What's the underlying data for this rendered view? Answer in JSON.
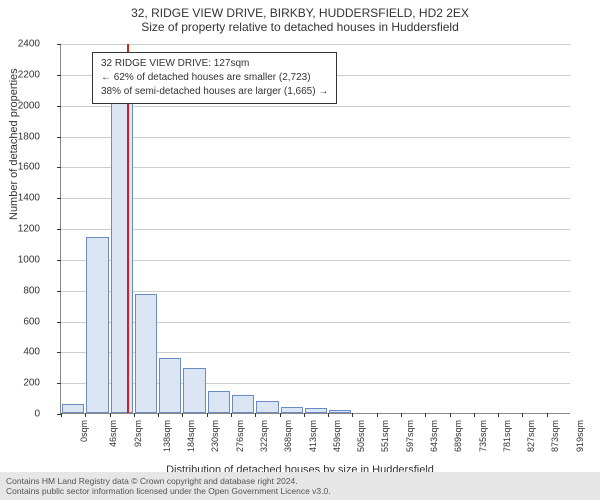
{
  "title": {
    "line1": "32, RIDGE VIEW DRIVE, BIRKBY, HUDDERSFIELD, HD2 2EX",
    "line2": "Size of property relative to detached houses in Huddersfield"
  },
  "chart": {
    "type": "histogram",
    "ylabel": "Number of detached properties",
    "xlabel": "Distribution of detached houses by size in Huddersfield",
    "ylim": [
      0,
      2400
    ],
    "ytick_step": 200,
    "background_color": "#ffffff",
    "grid_color": "#cccccc",
    "bar_fill": "#dce5f3",
    "bar_stroke": "#6a8bc4",
    "marker_color": "#d02020",
    "marker_x_index": 2.7,
    "xticks": [
      "0sqm",
      "46sqm",
      "92sqm",
      "138sqm",
      "184sqm",
      "230sqm",
      "276sqm",
      "322sqm",
      "368sqm",
      "413sqm",
      "459sqm",
      "505sqm",
      "551sqm",
      "597sqm",
      "643sqm",
      "689sqm",
      "735sqm",
      "781sqm",
      "827sqm",
      "873sqm",
      "919sqm"
    ],
    "bars": [
      60,
      1140,
      2280,
      770,
      360,
      290,
      140,
      120,
      75,
      40,
      35,
      20,
      0,
      0,
      0,
      0,
      0,
      0,
      0,
      0,
      0
    ]
  },
  "info_box": {
    "line1": "32 RIDGE VIEW DRIVE: 127sqm",
    "line2": "← 62% of detached houses are smaller (2,723)",
    "line3": "38% of semi-detached houses are larger (1,665) →"
  },
  "footer": {
    "line1": "Contains HM Land Registry data © Crown copyright and database right 2024.",
    "line2": "Contains public sector information licensed under the Open Government Licence v3.0."
  }
}
